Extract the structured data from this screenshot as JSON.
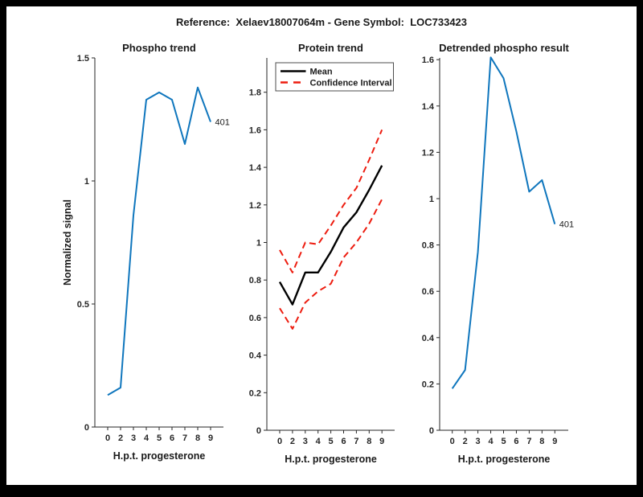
{
  "figure_title": "Reference:  Xelaev18007064m - Gene Symbol:  LOC733423",
  "colors": {
    "blue_line": "#0f76bd",
    "red_line": "#ed1c0f",
    "black_line": "#000000",
    "axis": "#262626",
    "text": "#1a1a1a"
  },
  "chart_data": [
    {
      "id": "phospho_trend",
      "type": "line",
      "title": "Phospho trend",
      "xlabel": "H.p.t. progesterone",
      "ylabel": "Normalized signal",
      "categories": [
        "0",
        "2",
        "3",
        "4",
        "5",
        "6",
        "7",
        "8",
        "9"
      ],
      "y_tick_labels": [
        "0",
        "0.5",
        "1",
        "1.5"
      ],
      "y_tick_values": [
        0,
        0.5,
        1,
        1.5
      ],
      "ylim": [
        0,
        1.5
      ],
      "grid": false,
      "series": [
        {
          "name": "phospho-signal",
          "color_key": "blue_line",
          "dash": false,
          "values": [
            0.13,
            0.16,
            0.86,
            1.33,
            1.36,
            1.33,
            1.15,
            1.38,
            1.24
          ]
        }
      ],
      "end_annotation": "401"
    },
    {
      "id": "protein_trend",
      "type": "line",
      "title": "Protein trend",
      "xlabel": "H.p.t. progesterone",
      "ylabel": "",
      "categories": [
        "0",
        "2",
        "3",
        "4",
        "5",
        "6",
        "7",
        "8",
        "9"
      ],
      "y_tick_labels": [
        "0",
        "0.2",
        "0.4",
        "0.6",
        "0.8",
        "1",
        "1.2",
        "1.4",
        "1.6",
        "1.8"
      ],
      "y_tick_values": [
        0,
        0.2,
        0.4,
        0.6,
        0.8,
        1,
        1.2,
        1.4,
        1.6,
        1.8
      ],
      "ylim": [
        0,
        1.98
      ],
      "grid": false,
      "legend": {
        "position": "top-left",
        "items": [
          {
            "label": "Mean",
            "color_key": "black_line",
            "dash": false
          },
          {
            "label": "Confidence Interval",
            "color_key": "red_line",
            "dash": true
          }
        ]
      },
      "series": [
        {
          "name": "mean",
          "color_key": "black_line",
          "dash": false,
          "width": 2.4,
          "values": [
            0.79,
            0.67,
            0.84,
            0.84,
            0.95,
            1.08,
            1.16,
            1.28,
            1.41
          ]
        },
        {
          "name": "confidence-upper",
          "color_key": "red_line",
          "dash": true,
          "values": [
            0.96,
            0.84,
            1.0,
            0.99,
            1.09,
            1.2,
            1.29,
            1.44,
            1.6
          ]
        },
        {
          "name": "confidence-lower",
          "color_key": "red_line",
          "dash": true,
          "values": [
            0.65,
            0.54,
            0.68,
            0.74,
            0.78,
            0.92,
            1.0,
            1.1,
            1.23
          ]
        }
      ]
    },
    {
      "id": "detrended_phospho",
      "type": "line",
      "title": "Detrended phospho result",
      "xlabel": "H.p.t. progesterone",
      "ylabel": "",
      "categories": [
        "0",
        "2",
        "3",
        "4",
        "5",
        "6",
        "7",
        "8",
        "9"
      ],
      "y_tick_labels": [
        "0",
        "0.2",
        "0.4",
        "0.6",
        "0.8",
        "1",
        "1.2",
        "1.4",
        "1.6"
      ],
      "y_tick_values": [
        0,
        0.2,
        0.4,
        0.6,
        0.8,
        1,
        1.2,
        1.4,
        1.6
      ],
      "ylim": [
        0,
        1.61
      ],
      "grid": false,
      "series": [
        {
          "name": "detrended-signal",
          "color_key": "blue_line",
          "dash": false,
          "values": [
            0.18,
            0.26,
            0.77,
            1.61,
            1.52,
            1.29,
            1.03,
            1.08,
            0.89
          ]
        }
      ],
      "end_annotation": "401"
    }
  ]
}
